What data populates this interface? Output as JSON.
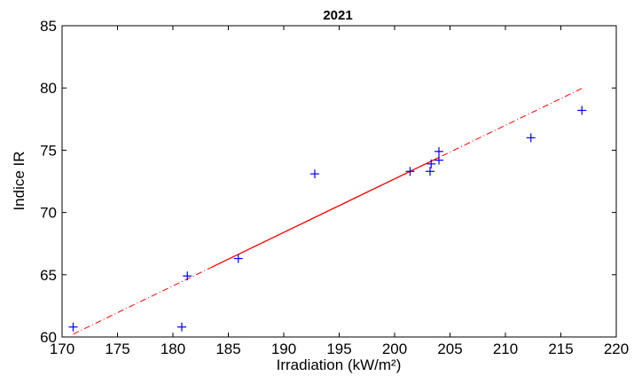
{
  "chart_data": {
    "type": "scatter",
    "title": "2021",
    "xlabel": "Irradiation (kW/m²)",
    "ylabel": "Indice IR",
    "xlim": [
      170,
      220
    ],
    "ylim": [
      60,
      85
    ],
    "xticks": [
      170,
      175,
      180,
      185,
      190,
      195,
      200,
      205,
      210,
      215,
      220
    ],
    "yticks": [
      60,
      65,
      70,
      75,
      80,
      85
    ],
    "grid": false,
    "series": [
      {
        "marker": "+",
        "color": "#0000ff",
        "points": [
          {
            "x": 171.0,
            "y": 60.8
          },
          {
            "x": 180.8,
            "y": 60.8
          },
          {
            "x": 181.3,
            "y": 64.9
          },
          {
            "x": 185.9,
            "y": 66.3
          },
          {
            "x": 192.8,
            "y": 73.1
          },
          {
            "x": 201.4,
            "y": 73.3
          },
          {
            "x": 203.2,
            "y": 73.3
          },
          {
            "x": 203.3,
            "y": 73.9
          },
          {
            "x": 204.0,
            "y": 74.2
          },
          {
            "x": 204.0,
            "y": 74.9
          },
          {
            "x": 212.3,
            "y": 76.0
          },
          {
            "x": 216.9,
            "y": 78.2
          }
        ]
      }
    ],
    "fit_line": {
      "color": "#ff0000",
      "solid_x": [
        183.5,
        204.0
      ],
      "dashed_x": [
        171.0,
        217.0
      ],
      "slope": 0.43,
      "intercept": -13.3
    }
  }
}
